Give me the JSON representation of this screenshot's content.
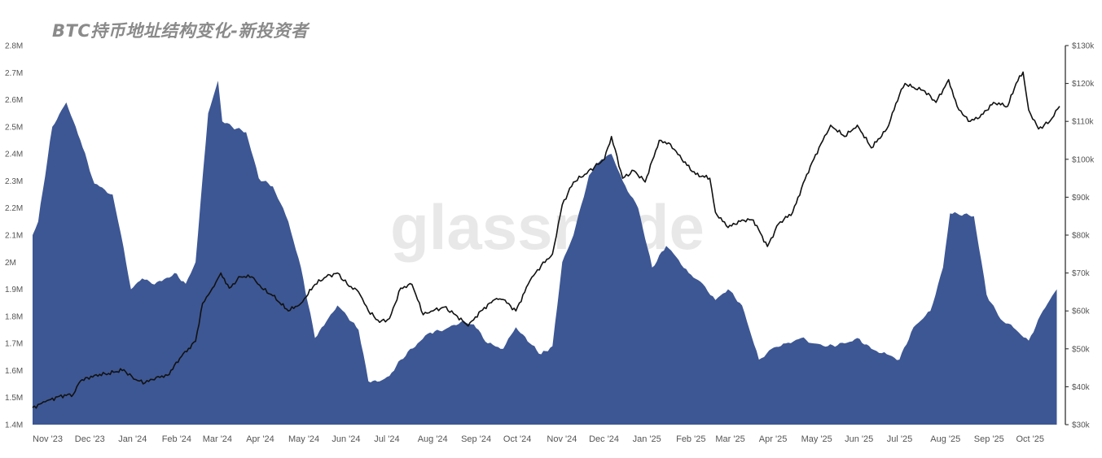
{
  "chart_data": {
    "type": "area",
    "title": "BTC持币地址结构变化-新投资者",
    "watermark": "glassnode",
    "x_labels": [
      "Nov '23",
      "Dec '23",
      "Jan '24",
      "Feb '24",
      "Mar '24",
      "Apr '24",
      "May '24",
      "Jun '24",
      "Jul '24",
      "Aug '24",
      "Sep '24",
      "Oct '24",
      "Nov '24",
      "Dec '24",
      "Jan '25",
      "Feb '25",
      "Mar '25",
      "Apr '25",
      "May '25",
      "Jun '25",
      "Jul '25",
      "Aug '25",
      "Sep '25",
      "Oct '25"
    ],
    "y_left": {
      "ylim": [
        1400000,
        2800000
      ],
      "ticks": [
        1400000,
        1500000,
        1600000,
        1700000,
        1800000,
        1900000,
        2000000,
        2100000,
        2200000,
        2300000,
        2400000,
        2500000,
        2600000,
        2700000,
        2800000
      ],
      "tick_labels": [
        "1.4M",
        "1.5M",
        "1.6M",
        "1.7M",
        "1.8M",
        "1.9M",
        "2M",
        "2.1M",
        "2.2M",
        "2.3M",
        "2.4M",
        "2.5M",
        "2.6M",
        "2.7M",
        "2.8M"
      ]
    },
    "y_right": {
      "ylim": [
        30000,
        130000
      ],
      "ticks": [
        30000,
        40000,
        50000,
        60000,
        70000,
        80000,
        90000,
        100000,
        110000,
        120000,
        130000
      ],
      "tick_labels": [
        "$30k",
        "$40k",
        "$50k",
        "$60k",
        "$70k",
        "$80k",
        "$90k",
        "$100k",
        "$110k",
        "$120k",
        "$130k"
      ]
    },
    "legend": "none",
    "grid": false,
    "series": [
      {
        "axis": "left",
        "type": "area",
        "color": "#3d5794",
        "x": [
          "2023-11-01",
          "2023-11-05",
          "2023-11-15",
          "2023-11-25",
          "2023-12-05",
          "2023-12-15",
          "2023-12-28",
          "2024-01-03",
          "2024-01-10",
          "2024-01-18",
          "2024-01-25",
          "2024-02-01",
          "2024-02-10",
          "2024-02-18",
          "2024-02-25",
          "2024-03-05",
          "2024-03-12",
          "2024-03-15",
          "2024-03-22",
          "2024-04-01",
          "2024-04-10",
          "2024-04-20",
          "2024-05-01",
          "2024-05-10",
          "2024-05-20",
          "2024-05-28",
          "2024-06-05",
          "2024-06-12",
          "2024-06-20",
          "2024-06-27",
          "2024-07-05",
          "2024-07-12",
          "2024-07-20",
          "2024-08-01",
          "2024-08-10",
          "2024-08-20",
          "2024-09-01",
          "2024-09-10",
          "2024-09-20",
          "2024-10-01",
          "2024-10-10",
          "2024-10-20",
          "2024-10-28",
          "2024-11-05",
          "2024-11-12",
          "2024-11-20",
          "2024-12-01",
          "2024-12-10",
          "2024-12-17",
          "2024-12-25",
          "2025-01-05",
          "2025-01-15",
          "2025-01-25",
          "2025-02-01",
          "2025-02-10",
          "2025-02-20",
          "2025-03-01",
          "2025-03-10",
          "2025-03-20",
          "2025-04-01",
          "2025-04-10",
          "2025-04-20",
          "2025-05-01",
          "2025-05-10",
          "2025-05-20",
          "2025-06-01",
          "2025-06-10",
          "2025-06-20",
          "2025-07-01",
          "2025-07-10",
          "2025-07-20",
          "2025-08-01",
          "2025-08-10",
          "2025-08-15",
          "2025-08-20",
          "2025-09-01",
          "2025-09-10",
          "2025-09-20",
          "2025-10-01",
          "2025-10-10",
          "2025-10-20",
          "2025-10-30"
        ],
        "values": [
          2100000,
          2150000,
          2500000,
          2590000,
          2450000,
          2290000,
          2250000,
          2100000,
          1900000,
          1940000,
          1920000,
          1930000,
          1960000,
          1920000,
          2000000,
          2550000,
          2670000,
          2520000,
          2500000,
          2480000,
          2310000,
          2280000,
          2150000,
          1980000,
          1720000,
          1780000,
          1840000,
          1800000,
          1750000,
          1560000,
          1560000,
          1580000,
          1640000,
          1700000,
          1740000,
          1750000,
          1780000,
          1770000,
          1700000,
          1680000,
          1760000,
          1700000,
          1660000,
          1690000,
          2000000,
          2100000,
          2320000,
          2380000,
          2400000,
          2300000,
          2200000,
          1980000,
          2060000,
          2020000,
          1960000,
          1920000,
          1860000,
          1900000,
          1840000,
          1640000,
          1680000,
          1700000,
          1720000,
          1700000,
          1690000,
          1700000,
          1720000,
          1680000,
          1660000,
          1640000,
          1760000,
          1820000,
          1980000,
          2180000,
          2180000,
          2170000,
          1880000,
          1790000,
          1750000,
          1710000,
          1820000,
          1900000
        ]
      },
      {
        "axis": "right",
        "type": "line",
        "color": "#111111",
        "x": [
          "2023-11-01",
          "2023-11-10",
          "2023-11-20",
          "2023-11-30",
          "2023-12-05",
          "2023-12-15",
          "2023-12-25",
          "2024-01-05",
          "2024-01-12",
          "2024-01-20",
          "2024-01-28",
          "2024-02-05",
          "2024-02-15",
          "2024-02-25",
          "2024-03-01",
          "2024-03-08",
          "2024-03-14",
          "2024-03-20",
          "2024-03-28",
          "2024-04-05",
          "2024-04-12",
          "2024-04-20",
          "2024-05-01",
          "2024-05-10",
          "2024-05-20",
          "2024-05-28",
          "2024-06-05",
          "2024-06-12",
          "2024-06-20",
          "2024-06-27",
          "2024-07-05",
          "2024-07-12",
          "2024-07-20",
          "2024-07-28",
          "2024-08-05",
          "2024-08-12",
          "2024-08-20",
          "2024-08-28",
          "2024-09-06",
          "2024-09-15",
          "2024-09-25",
          "2024-10-01",
          "2024-10-10",
          "2024-10-20",
          "2024-10-28",
          "2024-11-05",
          "2024-11-12",
          "2024-11-20",
          "2024-11-28",
          "2024-12-05",
          "2024-12-12",
          "2024-12-17",
          "2024-12-25",
          "2025-01-02",
          "2025-01-10",
          "2025-01-20",
          "2025-01-28",
          "2025-02-05",
          "2025-02-15",
          "2025-02-25",
          "2025-03-01",
          "2025-03-10",
          "2025-03-20",
          "2025-03-28",
          "2025-04-07",
          "2025-04-15",
          "2025-04-25",
          "2025-05-05",
          "2025-05-15",
          "2025-05-22",
          "2025-06-01",
          "2025-06-10",
          "2025-06-20",
          "2025-07-01",
          "2025-07-10",
          "2025-07-14",
          "2025-07-20",
          "2025-07-28",
          "2025-08-05",
          "2025-08-14",
          "2025-08-20",
          "2025-08-28",
          "2025-09-05",
          "2025-09-15",
          "2025-09-25",
          "2025-10-01",
          "2025-10-06",
          "2025-10-10",
          "2025-10-17",
          "2025-10-25",
          "2025-11-01"
        ],
        "values": [
          34500,
          36000,
          37500,
          38000,
          41500,
          43000,
          43500,
          44500,
          42000,
          41000,
          42500,
          43000,
          48000,
          52000,
          62000,
          66000,
          70000,
          66000,
          69000,
          69000,
          66000,
          64000,
          60000,
          62000,
          67000,
          69000,
          70000,
          67000,
          65000,
          60000,
          57000,
          58000,
          66000,
          67000,
          59000,
          60000,
          61000,
          59000,
          56000,
          60000,
          63000,
          63000,
          60000,
          68000,
          72000,
          75000,
          88000,
          94000,
          96000,
          98000,
          100000,
          106000,
          95000,
          97000,
          94000,
          105000,
          104000,
          100000,
          96000,
          95000,
          86000,
          82000,
          84000,
          84000,
          77000,
          83000,
          86000,
          96000,
          104000,
          109000,
          106000,
          109000,
          103000,
          108000,
          117000,
          120000,
          119000,
          118000,
          115000,
          121000,
          114000,
          110000,
          111000,
          115000,
          114000,
          120000,
          123000,
          113000,
          108000,
          110000,
          114000
        ]
      }
    ]
  }
}
